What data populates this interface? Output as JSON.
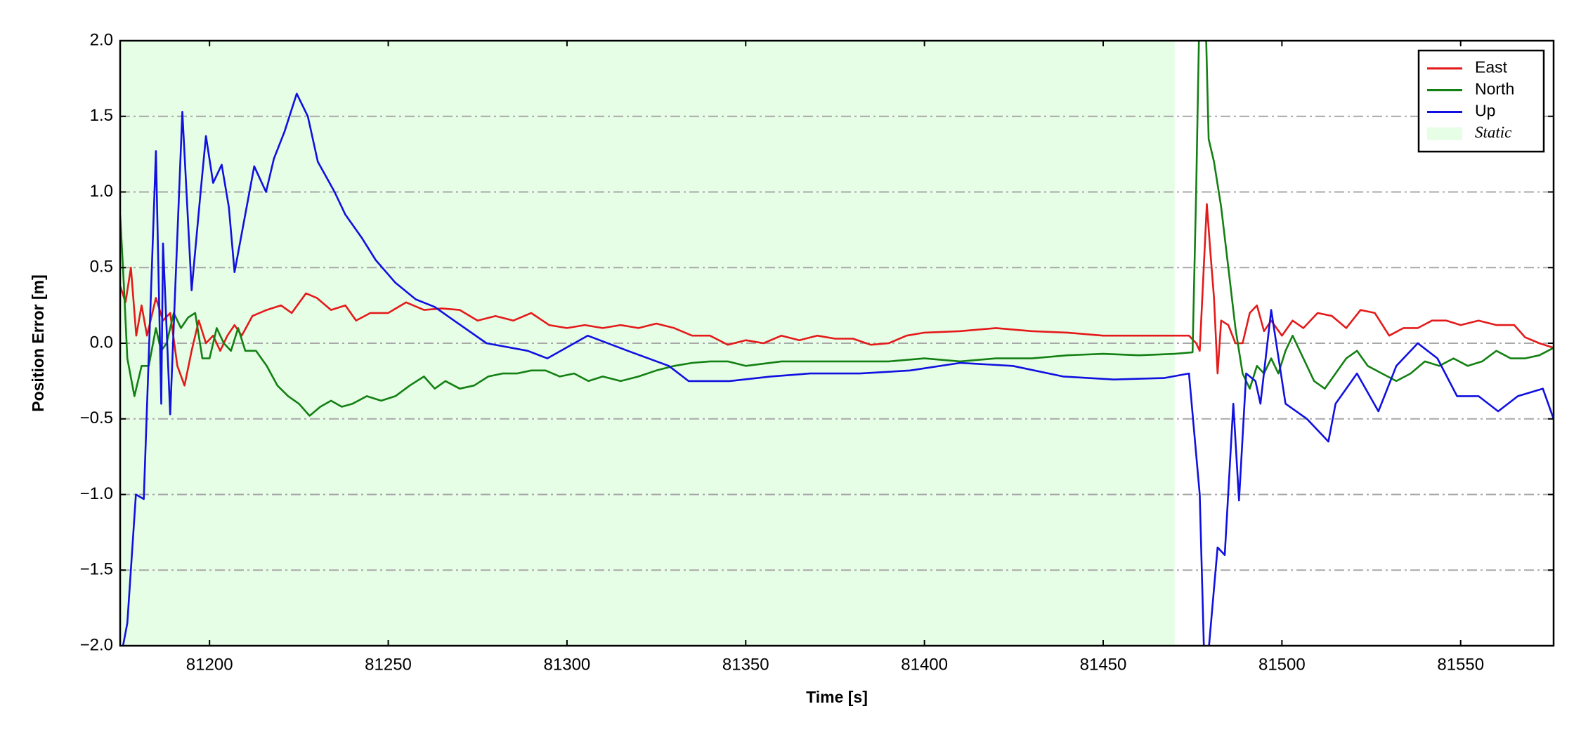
{
  "chart_data": {
    "type": "line",
    "xlabel": "Time [s]",
    "ylabel": "Position Error [m]",
    "xlim": [
      81175,
      81576
    ],
    "ylim": [
      -2,
      2
    ],
    "xticks": [
      81200,
      81250,
      81300,
      81350,
      81400,
      81450,
      81500,
      81550
    ],
    "yticks": [
      {
        "value": -2,
        "label": "−2.0"
      },
      {
        "value": -1.5,
        "label": "−1.5"
      },
      {
        "value": -1,
        "label": "−1.0"
      },
      {
        "value": -0.5,
        "label": "−0.5"
      },
      {
        "value": 0,
        "label": "0.0"
      },
      0.5,
      {
        "value": 1,
        "label": "1.0"
      },
      1.5,
      {
        "value": 2,
        "label": "2.0"
      }
    ],
    "grid": true,
    "legend": "upper right",
    "spans": [
      {
        "name": "Static",
        "color": "#e6fde6",
        "start": 81175,
        "end": 81470
      }
    ],
    "series": [
      {
        "name": "East",
        "color": "#e41a1a",
        "x": [
          81175,
          81176.5,
          81178,
          81179.5,
          81181,
          81182.5,
          81185,
          81187,
          81189,
          81191,
          81193,
          81195,
          81197,
          81199,
          81201,
          81203,
          81205,
          81207,
          81209,
          81212,
          81216,
          81220,
          81223,
          81227,
          81230,
          81234,
          81238,
          81241,
          81245,
          81250,
          81255,
          81260,
          81265,
          81270,
          81275,
          81280,
          81285,
          81290,
          81295,
          81300,
          81305,
          81310,
          81315,
          81320,
          81325,
          81330,
          81335,
          81340,
          81345,
          81350,
          81355,
          81360,
          81365,
          81370,
          81375,
          81380,
          81385,
          81390,
          81395,
          81400,
          81410,
          81420,
          81430,
          81440,
          81450,
          81460,
          81470,
          81474,
          81476,
          81477,
          81479,
          81480,
          81481,
          81482,
          81483,
          81485,
          81487,
          81489,
          81491,
          81493,
          81495,
          81497,
          81500,
          81503,
          81506,
          81510,
          81514,
          81518,
          81522,
          81526,
          81530,
          81534,
          81538,
          81542,
          81546,
          81550,
          81555,
          81560,
          81565,
          81568,
          81572,
          81576
        ],
        "values": [
          0.38,
          0.27,
          0.5,
          0.05,
          0.25,
          0.05,
          0.3,
          0.15,
          0.2,
          -0.15,
          -0.28,
          -0.05,
          0.15,
          0.0,
          0.05,
          -0.05,
          0.05,
          0.12,
          0.05,
          0.18,
          0.22,
          0.25,
          0.2,
          0.33,
          0.3,
          0.22,
          0.25,
          0.15,
          0.2,
          0.2,
          0.27,
          0.22,
          0.23,
          0.22,
          0.15,
          0.18,
          0.15,
          0.2,
          0.12,
          0.1,
          0.12,
          0.1,
          0.12,
          0.1,
          0.13,
          0.1,
          0.05,
          0.05,
          -0.01,
          0.02,
          0.0,
          0.05,
          0.02,
          0.05,
          0.03,
          0.03,
          -0.01,
          0.0,
          0.05,
          0.07,
          0.08,
          0.1,
          0.08,
          0.07,
          0.05,
          0.05,
          0.05,
          0.05,
          0.0,
          -0.05,
          0.92,
          0.6,
          0.3,
          -0.2,
          0.15,
          0.12,
          0.0,
          0.0,
          0.2,
          0.25,
          0.08,
          0.15,
          0.05,
          0.15,
          0.1,
          0.2,
          0.18,
          0.1,
          0.22,
          0.2,
          0.05,
          0.1,
          0.1,
          0.15,
          0.15,
          0.12,
          0.15,
          0.12,
          0.12,
          0.04,
          0.0,
          -0.03
        ]
      },
      {
        "name": "North",
        "color": "#138013",
        "x": [
          81175,
          81176,
          81177,
          81179,
          81181,
          81183,
          81185,
          81186.5,
          81188,
          81190,
          81192,
          81194,
          81196,
          81198,
          81200,
          81202,
          81204,
          81206,
          81208,
          81210,
          81213,
          81216,
          81219,
          81222,
          81225,
          81228,
          81231,
          81234,
          81237,
          81240,
          81244,
          81248,
          81252,
          81256,
          81260,
          81263,
          81266,
          81270,
          81274,
          81278,
          81282,
          81286,
          81290,
          81294,
          81298,
          81302,
          81306,
          81310,
          81315,
          81320,
          81325,
          81330,
          81335,
          81340,
          81345,
          81350,
          81360,
          81370,
          81380,
          81390,
          81400,
          81410,
          81420,
          81430,
          81440,
          81450,
          81460,
          81470,
          81475,
          81476,
          81477,
          81478.5,
          81479.5,
          81481,
          81483,
          81485,
          81487,
          81489,
          81491,
          81493,
          81495,
          81497,
          81499,
          81501,
          81503,
          81506,
          81509,
          81512,
          81515,
          81518,
          81521,
          81524,
          81528,
          81532,
          81536,
          81540,
          81544,
          81548,
          81552,
          81556,
          81560,
          81564,
          81568,
          81572,
          81576
        ],
        "values": [
          0.85,
          0.4,
          -0.1,
          -0.35,
          -0.15,
          -0.15,
          0.1,
          -0.05,
          0.0,
          0.2,
          0.1,
          0.17,
          0.2,
          -0.1,
          -0.1,
          0.1,
          0.0,
          -0.05,
          0.1,
          -0.05,
          -0.05,
          -0.15,
          -0.28,
          -0.35,
          -0.4,
          -0.48,
          -0.42,
          -0.38,
          -0.42,
          -0.4,
          -0.35,
          -0.38,
          -0.35,
          -0.28,
          -0.22,
          -0.3,
          -0.25,
          -0.3,
          -0.28,
          -0.22,
          -0.2,
          -0.2,
          -0.18,
          -0.18,
          -0.22,
          -0.2,
          -0.25,
          -0.22,
          -0.25,
          -0.22,
          -0.18,
          -0.15,
          -0.13,
          -0.12,
          -0.12,
          -0.15,
          -0.12,
          -0.12,
          -0.12,
          -0.12,
          -0.1,
          -0.12,
          -0.1,
          -0.1,
          -0.08,
          -0.07,
          -0.08,
          -0.07,
          -0.06,
          1.0,
          2.3,
          2.3,
          1.35,
          1.2,
          0.9,
          0.5,
          0.1,
          -0.2,
          -0.3,
          -0.15,
          -0.2,
          -0.1,
          -0.2,
          -0.05,
          0.05,
          -0.1,
          -0.25,
          -0.3,
          -0.2,
          -0.1,
          -0.05,
          -0.15,
          -0.2,
          -0.25,
          -0.2,
          -0.12,
          -0.15,
          -0.1,
          -0.15,
          -0.12,
          -0.05,
          -0.1,
          -0.1,
          -0.08,
          -0.03
        ]
      },
      {
        "name": "Up",
        "color": "#1010e0",
        "x": [
          81175,
          81177,
          81179.4,
          81181.6,
          81185,
          81186.5,
          81187,
          81189,
          81192.4,
          81195,
          81197.5,
          81199,
          81201,
          81203.4,
          81205.4,
          81207,
          81208.8,
          81212.5,
          81215.8,
          81218,
          81221,
          81224.4,
          81227.5,
          81230.3,
          81235,
          81238,
          81242.5,
          81246.5,
          81252,
          81257.7,
          81263,
          81269,
          81277.5,
          81289,
          81294.5,
          81305.8,
          81317,
          81328.5,
          81334,
          81345.5,
          81357,
          81368,
          81382,
          81396,
          81410,
          81424.7,
          81438.8,
          81453,
          81467,
          81474,
          81477,
          81478.5,
          81482,
          81484,
          81486.4,
          81488,
          81490,
          81492.6,
          81494,
          81497,
          81501,
          81507,
          81513,
          81515,
          81521,
          81527,
          81532,
          81538,
          81543.5,
          81549,
          81555,
          81560.5,
          81566,
          81573,
          81576
        ],
        "values": [
          -2.1,
          -1.85,
          -1.0,
          -1.03,
          1.27,
          -0.4,
          0.66,
          -0.47,
          1.53,
          0.35,
          1.0,
          1.37,
          1.06,
          1.18,
          0.9,
          0.47,
          0.7,
          1.17,
          1.0,
          1.22,
          1.4,
          1.65,
          1.5,
          1.2,
          1.0,
          0.85,
          0.7,
          0.55,
          0.4,
          0.29,
          0.24,
          0.14,
          0.0,
          -0.05,
          -0.1,
          0.05,
          -0.05,
          -0.15,
          -0.25,
          -0.25,
          -0.22,
          -0.2,
          -0.2,
          -0.18,
          -0.13,
          -0.15,
          -0.22,
          -0.24,
          -0.23,
          -0.2,
          -1.0,
          -2.3,
          -1.35,
          -1.4,
          -0.4,
          -1.04,
          -0.2,
          -0.25,
          -0.4,
          0.22,
          -0.4,
          -0.5,
          -0.65,
          -0.4,
          -0.2,
          -0.45,
          -0.15,
          0.0,
          -0.1,
          -0.35,
          -0.35,
          -0.45,
          -0.35,
          -0.3,
          -0.5
        ]
      }
    ]
  }
}
